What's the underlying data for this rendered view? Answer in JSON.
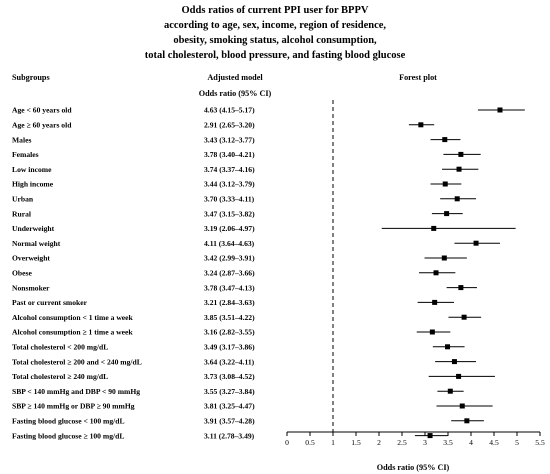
{
  "chart_data": {
    "type": "forest",
    "title_lines": [
      "Odds ratios of current PPI user for BPPV",
      "according to age, sex, income, region of residence,",
      "obesity, smoking status, alcohol consumption,",
      "total cholesterol, blood pressure, and fasting blood glucose"
    ],
    "headers": {
      "subgroups": "Subgroups",
      "model": "Adjusted model",
      "model_sub": "Odds ratio (95% CI)",
      "plot": "Forest plot"
    },
    "xlabel": "Odds ratio (95% CI)",
    "xlim": [
      0,
      5.5
    ],
    "xticks": [
      0,
      0.5,
      1,
      1.5,
      2,
      2.5,
      3,
      3.5,
      4,
      4.5,
      5,
      5.5
    ],
    "xtick_labels": [
      "0",
      "0.5",
      "1",
      "1.5",
      "2",
      "2.5",
      "3",
      "3.5",
      "4",
      "4.5",
      "5",
      "5.5"
    ],
    "reference_line": 1,
    "rows": [
      {
        "label": "Age < 60 years old",
        "ci_text": "4.63 (4.15–5.17)",
        "or": 4.63,
        "lo": 4.15,
        "hi": 5.17
      },
      {
        "label": "Age ≥ 60 years old",
        "ci_text": "2.91 (2.65–3.20)",
        "or": 2.91,
        "lo": 2.65,
        "hi": 3.2
      },
      {
        "label": "Males",
        "ci_text": "3.43 (3.12–3.77)",
        "or": 3.43,
        "lo": 3.12,
        "hi": 3.77
      },
      {
        "label": "Females",
        "ci_text": "3.78 (3.40–4.21)",
        "or": 3.78,
        "lo": 3.4,
        "hi": 4.21
      },
      {
        "label": "Low income",
        "ci_text": "3.74 (3.37–4.16)",
        "or": 3.74,
        "lo": 3.37,
        "hi": 4.16
      },
      {
        "label": "High income",
        "ci_text": "3.44 (3.12–3.79)",
        "or": 3.44,
        "lo": 3.12,
        "hi": 3.79
      },
      {
        "label": "Urban",
        "ci_text": "3.70 (3.33–4.11)",
        "or": 3.7,
        "lo": 3.33,
        "hi": 4.11
      },
      {
        "label": "Rural",
        "ci_text": "3.47 (3.15–3.82)",
        "or": 3.47,
        "lo": 3.15,
        "hi": 3.82
      },
      {
        "label": "Underweight",
        "ci_text": "3.19 (2.06–4.97)",
        "or": 3.19,
        "lo": 2.06,
        "hi": 4.97
      },
      {
        "label": "Normal weight",
        "ci_text": "4.11 (3.64–4.63)",
        "or": 4.11,
        "lo": 3.64,
        "hi": 4.63
      },
      {
        "label": "Overweight",
        "ci_text": "3.42 (2.99–3.91)",
        "or": 3.42,
        "lo": 2.99,
        "hi": 3.91
      },
      {
        "label": "Obese",
        "ci_text": "3.24 (2.87–3.66)",
        "or": 3.24,
        "lo": 2.87,
        "hi": 3.66
      },
      {
        "label": "Nonsmoker",
        "ci_text": "3.78 (3.47–4.13)",
        "or": 3.78,
        "lo": 3.47,
        "hi": 4.13
      },
      {
        "label": "Past or current smoker",
        "ci_text": "3.21 (2.84–3.63)",
        "or": 3.21,
        "lo": 2.84,
        "hi": 3.63
      },
      {
        "label": "Alcohol consumption < 1 time a week",
        "ci_text": "3.85 (3.51–4.22)",
        "or": 3.85,
        "lo": 3.51,
        "hi": 4.22
      },
      {
        "label": "Alcohol consumption ≥ 1 time a week",
        "ci_text": "3.16 (2.82–3.55)",
        "or": 3.16,
        "lo": 2.82,
        "hi": 3.55
      },
      {
        "label": "Total cholesterol < 200 mg/dL",
        "ci_text": "3.49 (3.17–3.86)",
        "or": 3.49,
        "lo": 3.17,
        "hi": 3.86
      },
      {
        "label": "Total cholesterol ≥ 200 and < 240 mg/dL",
        "ci_text": "3.64 (3.22–4.11)",
        "or": 3.64,
        "lo": 3.22,
        "hi": 4.11
      },
      {
        "label": "Total cholesterol ≥ 240 mg/dL",
        "ci_text": "3.73 (3.08–4.52)",
        "or": 3.73,
        "lo": 3.08,
        "hi": 4.52
      },
      {
        "label": "SBP < 140 mmHg and DBP < 90 mmHg",
        "ci_text": "3.55 (3.27–3.84)",
        "or": 3.55,
        "lo": 3.27,
        "hi": 3.84
      },
      {
        "label": "SBP ≥ 140 mmHg or DBP ≥ 90 mmHg",
        "ci_text": "3.81 (3.25–4.47)",
        "or": 3.81,
        "lo": 3.25,
        "hi": 4.47
      },
      {
        "label": "Fasting blood glucose < 100 mg/dL",
        "ci_text": "3.91 (3.57–4.28)",
        "or": 3.91,
        "lo": 3.57,
        "hi": 4.28
      },
      {
        "label": "Fasting blood glucose ≥ 100 mg/dL",
        "ci_text": "3.11 (2.78–3.49)",
        "or": 3.11,
        "lo": 2.78,
        "hi": 3.49
      }
    ]
  }
}
